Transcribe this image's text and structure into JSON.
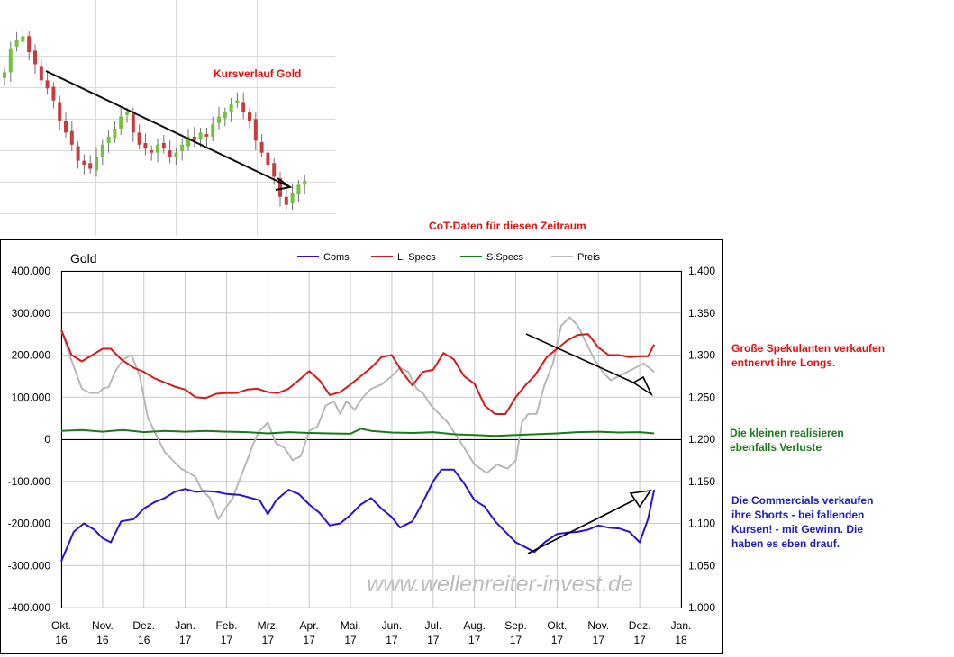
{
  "colors": {
    "coms": "#2a10d8",
    "lspecs": "#d81818",
    "sspecs": "#1a7a1a",
    "preis": "#b8b8b8",
    "candle_up": "#72c23a",
    "candle_down": "#c83c3c",
    "note_red": "#e01010",
    "note_green": "#1a7a1a",
    "note_blue": "#2020c0"
  },
  "price_chart": {
    "title": "Kursverlauf Gold",
    "closes": [
      1290,
      1320,
      1330,
      1335,
      1315,
      1300,
      1280,
      1270,
      1255,
      1230,
      1215,
      1200,
      1180,
      1175,
      1170,
      1185,
      1200,
      1210,
      1220,
      1235,
      1240,
      1215,
      1200,
      1195,
      1190,
      1200,
      1195,
      1185,
      1190,
      1200,
      1210,
      1205,
      1215,
      1210,
      1225,
      1235,
      1240,
      1250,
      1255,
      1240,
      1230,
      1205,
      1190,
      1175,
      1160,
      1135,
      1125,
      1140,
      1150,
      1155
    ]
  },
  "annotations": {
    "cot_title": "CoT-Daten für diesen Zeitraum",
    "lspecs_note": [
      "Große Spekulanten verkaufen",
      "entnervt ihre Longs."
    ],
    "sspecs_note": [
      "Die kleinen realisieren",
      "ebenfalls Verluste"
    ],
    "coms_note": [
      "Die Commercials verkaufen",
      "ihre Shorts - bei fallenden",
      "Kursen! - mit Gewinn. Die",
      "haben es eben drauf."
    ]
  },
  "chart_data": {
    "type": "line",
    "title": "Gold",
    "watermark": "www.wellenreiter-invest.de",
    "grid": true,
    "legend_position": "top",
    "x_labels": [
      [
        "Okt.",
        "16"
      ],
      [
        "Nov.",
        "16"
      ],
      [
        "Dez.",
        "16"
      ],
      [
        "Jan.",
        "17"
      ],
      [
        "Feb.",
        "17"
      ],
      [
        "Mrz.",
        "17"
      ],
      [
        "Apr.",
        "17"
      ],
      [
        "Mai.",
        "17"
      ],
      [
        "Jun.",
        "17"
      ],
      [
        "Jul.",
        "17"
      ],
      [
        "Aug.",
        "17"
      ],
      [
        "Sep.",
        "17"
      ],
      [
        "Okt.",
        "17"
      ],
      [
        "Nov.",
        "17"
      ],
      [
        "Dez.",
        "17"
      ],
      [
        "Jan.",
        "18"
      ]
    ],
    "x_range": [
      0,
      15
    ],
    "y_left": {
      "range": [
        -400000,
        400000
      ],
      "ticks": [
        "400.000",
        "300.000",
        "200.000",
        "100.000",
        "0",
        "-100.000",
        "-200.000",
        "-300.000",
        "-400.000"
      ]
    },
    "y_right": {
      "range": [
        1.0,
        1.4
      ],
      "ticks": [
        "1.400",
        "1.350",
        "1.300",
        "1.250",
        "1.200",
        "1.150",
        "1.100",
        "1.050",
        "1.000"
      ]
    },
    "series": [
      {
        "name": "Coms",
        "axis": "left",
        "x": [
          0,
          0.3,
          0.55,
          0.8,
          1.0,
          1.2,
          1.45,
          1.75,
          2.0,
          2.25,
          2.5,
          2.75,
          3.0,
          3.25,
          3.5,
          3.75,
          4.0,
          4.3,
          4.6,
          4.8,
          5.0,
          5.2,
          5.5,
          5.75,
          6.0,
          6.25,
          6.5,
          6.75,
          7.0,
          7.25,
          7.5,
          7.75,
          8.0,
          8.2,
          8.5,
          8.75,
          9.0,
          9.2,
          9.5,
          9.75,
          10.0,
          10.25,
          10.5,
          10.75,
          11.0,
          11.2,
          11.45,
          11.7,
          12.0,
          12.25,
          12.5,
          12.75,
          13.0,
          13.25,
          13.5,
          13.75,
          14.0,
          14.2,
          14.35
        ],
        "y": [
          -290000,
          -220000,
          -200000,
          -215000,
          -235000,
          -245000,
          -195000,
          -190000,
          -165000,
          -150000,
          -140000,
          -125000,
          -118000,
          -125000,
          -123000,
          -125000,
          -130000,
          -132000,
          -140000,
          -145000,
          -178000,
          -145000,
          -120000,
          -130000,
          -155000,
          -175000,
          -205000,
          -200000,
          -180000,
          -155000,
          -140000,
          -165000,
          -185000,
          -210000,
          -195000,
          -150000,
          -100000,
          -72000,
          -72000,
          -105000,
          -145000,
          -160000,
          -195000,
          -220000,
          -245000,
          -255000,
          -268000,
          -245000,
          -225000,
          -222000,
          -220000,
          -215000,
          -205000,
          -210000,
          -212000,
          -220000,
          -245000,
          -190000,
          -120000
        ]
      },
      {
        "name": "L. Specs",
        "axis": "left",
        "x": [
          0,
          0.25,
          0.5,
          0.75,
          1.0,
          1.2,
          1.45,
          1.75,
          2.0,
          2.25,
          2.5,
          2.75,
          3.0,
          3.25,
          3.5,
          3.75,
          4.0,
          4.25,
          4.5,
          4.75,
          5.0,
          5.25,
          5.5,
          5.75,
          6.0,
          6.25,
          6.5,
          6.75,
          7.0,
          7.25,
          7.5,
          7.75,
          8.0,
          8.25,
          8.5,
          8.75,
          9.0,
          9.25,
          9.5,
          9.75,
          10.0,
          10.25,
          10.5,
          10.75,
          11.0,
          11.25,
          11.45,
          11.75,
          12.0,
          12.25,
          12.5,
          12.75,
          13.0,
          13.25,
          13.5,
          13.75,
          14.0,
          14.2,
          14.35
        ],
        "y": [
          260000,
          200000,
          185000,
          200000,
          215000,
          215000,
          190000,
          170000,
          160000,
          145000,
          135000,
          125000,
          118000,
          100000,
          98000,
          108000,
          110000,
          110000,
          118000,
          120000,
          112000,
          110000,
          120000,
          140000,
          162000,
          140000,
          105000,
          112000,
          130000,
          150000,
          170000,
          195000,
          200000,
          160000,
          128000,
          160000,
          165000,
          205000,
          190000,
          150000,
          132000,
          80000,
          60000,
          60000,
          100000,
          130000,
          150000,
          195000,
          215000,
          235000,
          248000,
          250000,
          218000,
          200000,
          200000,
          195000,
          197000,
          197000,
          225000
        ]
      },
      {
        "name": "S.Specs",
        "axis": "left",
        "x": [
          0,
          0.5,
          1.0,
          1.5,
          2.0,
          2.5,
          3.0,
          3.5,
          4.0,
          4.5,
          5.0,
          5.5,
          6.0,
          6.5,
          7.0,
          7.25,
          7.5,
          8.0,
          8.5,
          9.0,
          9.5,
          10.0,
          10.5,
          11.0,
          11.5,
          12.0,
          12.5,
          13.0,
          13.5,
          14.0,
          14.35
        ],
        "y": [
          20000,
          22000,
          18000,
          22000,
          17000,
          20000,
          18000,
          20000,
          18000,
          17000,
          14000,
          17000,
          15000,
          14000,
          13000,
          25000,
          20000,
          16000,
          15000,
          17000,
          12000,
          10000,
          8000,
          10000,
          12000,
          14000,
          17000,
          18000,
          16000,
          17000,
          14000
        ]
      },
      {
        "name": "Preis",
        "axis": "right",
        "x": [
          0,
          0.2,
          0.35,
          0.5,
          0.7,
          0.9,
          1.0,
          1.15,
          1.3,
          1.5,
          1.7,
          1.9,
          2.1,
          2.3,
          2.5,
          2.7,
          2.9,
          3.1,
          3.25,
          3.4,
          3.6,
          3.8,
          4.0,
          4.15,
          4.3,
          4.5,
          4.65,
          4.8,
          5.0,
          5.2,
          5.4,
          5.6,
          5.8,
          6.0,
          6.2,
          6.4,
          6.6,
          6.75,
          6.9,
          7.1,
          7.3,
          7.5,
          7.75,
          8.0,
          8.2,
          8.4,
          8.6,
          8.75,
          8.95,
          9.15,
          9.35,
          9.55,
          9.75,
          10.0,
          10.3,
          10.55,
          10.8,
          11.0,
          11.15,
          11.3,
          11.5,
          11.7,
          11.9,
          12.1,
          12.3,
          12.5,
          12.7,
          12.9,
          13.1,
          13.3,
          13.5,
          13.7,
          13.9,
          14.1,
          14.35
        ],
        "y": [
          1.33,
          1.3,
          1.28,
          1.26,
          1.255,
          1.255,
          1.26,
          1.262,
          1.28,
          1.295,
          1.3,
          1.275,
          1.225,
          1.205,
          1.185,
          1.175,
          1.165,
          1.16,
          1.155,
          1.14,
          1.13,
          1.105,
          1.12,
          1.13,
          1.15,
          1.175,
          1.195,
          1.21,
          1.22,
          1.195,
          1.19,
          1.175,
          1.18,
          1.21,
          1.215,
          1.24,
          1.245,
          1.23,
          1.245,
          1.235,
          1.25,
          1.26,
          1.265,
          1.275,
          1.285,
          1.28,
          1.26,
          1.255,
          1.24,
          1.23,
          1.22,
          1.205,
          1.19,
          1.17,
          1.16,
          1.17,
          1.165,
          1.175,
          1.22,
          1.23,
          1.23,
          1.265,
          1.29,
          1.335,
          1.345,
          1.335,
          1.315,
          1.295,
          1.28,
          1.27,
          1.275,
          1.28,
          1.285,
          1.29,
          1.28
        ]
      }
    ]
  }
}
